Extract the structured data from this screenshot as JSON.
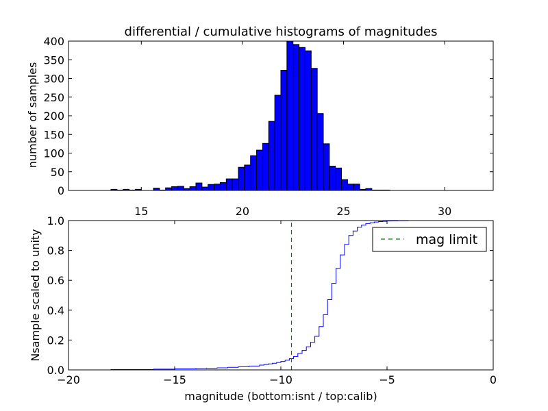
{
  "chart_data": [
    {
      "type": "bar",
      "title": "differential / cumulative histograms of magnitudes",
      "xlabel": "",
      "ylabel": "number of samples",
      "xlim": [
        11.4,
        32.4
      ],
      "ylim": [
        0,
        400
      ],
      "xticks": [
        "15",
        "20",
        "25",
        "30"
      ],
      "xtick_values": [
        15,
        20,
        25,
        30
      ],
      "yticks": [
        "0",
        "50",
        "100",
        "150",
        "200",
        "250",
        "300",
        "350",
        "400"
      ],
      "ytick_values": [
        0,
        50,
        100,
        150,
        200,
        250,
        300,
        350,
        400
      ],
      "bin_width": 0.3,
      "bar_color": "#0000ff",
      "bins_left": [
        13.5,
        13.8,
        14.1,
        14.4,
        14.7,
        15.0,
        15.3,
        15.6,
        15.9,
        16.2,
        16.5,
        16.8,
        17.1,
        17.4,
        17.7,
        18.0,
        18.3,
        18.6,
        18.9,
        19.2,
        19.5,
        19.8,
        20.1,
        20.4,
        20.7,
        21.0,
        21.3,
        21.6,
        21.9,
        22.2,
        22.5,
        22.8,
        23.1,
        23.4,
        23.7,
        24.0,
        24.3,
        24.6,
        24.9,
        25.2,
        25.5,
        25.8,
        26.1,
        26.4,
        26.7,
        27.0,
        27.3,
        27.6
      ],
      "values": [
        3,
        1,
        3,
        1,
        3,
        0,
        0,
        6,
        1,
        7,
        10,
        11,
        5,
        10,
        20,
        9,
        16,
        17,
        21,
        31,
        31,
        62,
        68,
        93,
        108,
        126,
        185,
        255,
        322,
        400,
        391,
        383,
        374,
        327,
        206,
        125,
        65,
        60,
        29,
        17,
        17,
        3,
        5,
        1,
        1,
        1,
        0,
        0
      ]
    },
    {
      "type": "line",
      "step": true,
      "title": "",
      "xlabel": "magnitude (bottom:isnt / top:calib)",
      "ylabel": "Nsample scaled to unity",
      "xlim": [
        -20,
        0
      ],
      "ylim": [
        0,
        1
      ],
      "xticks": [
        "−20",
        "−15",
        "−10",
        "−5",
        "0"
      ],
      "xtick_values": [
        -20,
        -15,
        -10,
        -5,
        0
      ],
      "yticks": [
        "0.0",
        "0.2",
        "0.4",
        "0.6",
        "0.8",
        "1.0"
      ],
      "ytick_values": [
        0,
        0.2,
        0.4,
        0.6,
        0.8,
        1.0
      ],
      "legend": {
        "placement": "top-right",
        "entries": [
          "mag limit"
        ]
      },
      "series": [
        {
          "color": "#0000ff",
          "x": [
            -20,
            -18,
            -16,
            -15,
            -14,
            -13.5,
            -13,
            -12.5,
            -12,
            -11.5,
            -11,
            -10.8,
            -10.6,
            -10.4,
            -10.2,
            -10.0,
            -9.8,
            -9.6,
            -9.4,
            -9.2,
            -9.0,
            -8.8,
            -8.6,
            -8.4,
            -8.2,
            -8.0,
            -7.8,
            -7.6,
            -7.4,
            -7.2,
            -7.0,
            -6.8,
            -6.6,
            -6.4,
            -6.2,
            -6.0,
            -5.8,
            -5.6,
            -5.4,
            -5.2,
            -5.0,
            -4.8,
            -4.5,
            -4.0,
            -3.0,
            0
          ],
          "y": [
            0,
            0.002,
            0.005,
            0.007,
            0.009,
            0.011,
            0.014,
            0.017,
            0.021,
            0.026,
            0.032,
            0.036,
            0.04,
            0.045,
            0.05,
            0.057,
            0.065,
            0.075,
            0.09,
            0.11,
            0.13,
            0.155,
            0.185,
            0.225,
            0.29,
            0.37,
            0.47,
            0.58,
            0.68,
            0.77,
            0.84,
            0.9,
            0.93,
            0.955,
            0.97,
            0.98,
            0.985,
            0.99,
            0.993,
            0.995,
            0.997,
            0.998,
            0.999,
            1.0,
            1.0,
            1.0
          ]
        },
        {
          "name": "mag limit",
          "color": "#008000",
          "style": "dashed",
          "x": [
            -9.5,
            -9.5
          ],
          "y": [
            0,
            1
          ]
        }
      ]
    }
  ]
}
